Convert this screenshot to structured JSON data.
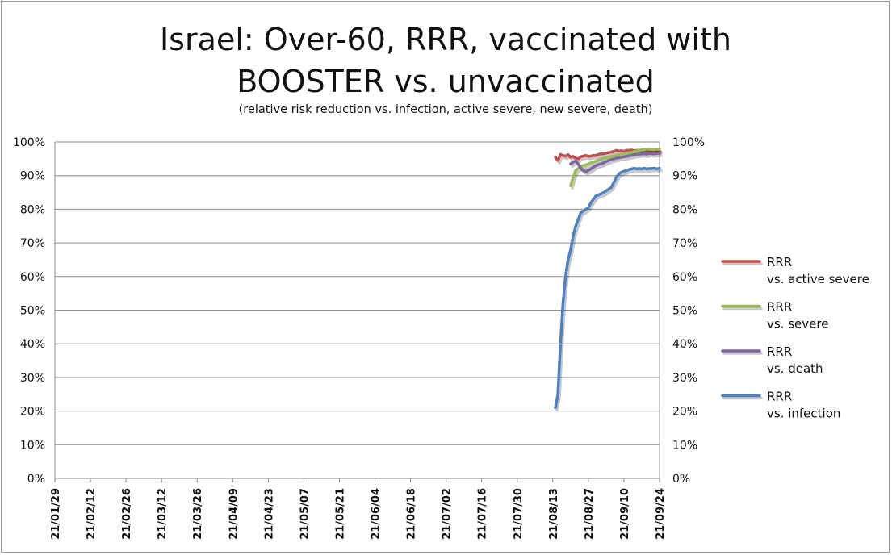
{
  "chart_data": {
    "type": "line",
    "title_lines": [
      "Israel: Over-60, RRR, vaccinated with",
      "BOOSTER vs. unvaccinated"
    ],
    "subtitle": "(relative risk reduction vs. infection, active severe, new severe, death)",
    "x_categories": [
      "21/01/29",
      "21/02/12",
      "21/02/26",
      "21/03/12",
      "21/03/26",
      "21/04/09",
      "21/04/23",
      "21/05/07",
      "21/05/21",
      "21/06/04",
      "21/06/18",
      "21/07/02",
      "21/07/16",
      "21/07/30",
      "21/08/13",
      "21/08/27",
      "21/09/10",
      "21/09/24"
    ],
    "y_ticks_left": [
      "100%",
      "90%",
      "80%",
      "70%",
      "60%",
      "50%",
      "40%",
      "30%",
      "20%",
      "10%",
      "0%"
    ],
    "y_ticks_right": [
      "100%",
      "90%",
      "80%",
      "70%",
      "60%",
      "50%",
      "40%",
      "30%",
      "20%",
      "10%",
      "0%"
    ],
    "ylim": [
      0,
      100
    ],
    "grid": true,
    "legend_position": "right",
    "series": [
      {
        "name_lines": [
          "RRR",
          "vs. active severe"
        ],
        "color": "#c0504d",
        "points": [
          [
            "21/08/14",
            95.5
          ],
          [
            "21/08/15",
            94.5
          ],
          [
            "21/08/16",
            96.3
          ],
          [
            "21/08/17",
            96
          ],
          [
            "21/08/18",
            95.8
          ],
          [
            "21/08/19",
            96.2
          ],
          [
            "21/08/20",
            95.5
          ],
          [
            "21/08/21",
            95.7
          ],
          [
            "21/08/22",
            95.2
          ],
          [
            "21/08/23",
            95
          ],
          [
            "21/08/24",
            95.6
          ],
          [
            "21/08/25",
            95.8
          ],
          [
            "21/08/26",
            96
          ],
          [
            "21/08/27",
            95.7
          ],
          [
            "21/08/28",
            95.8
          ],
          [
            "21/08/29",
            96
          ],
          [
            "21/08/30",
            96
          ],
          [
            "21/08/31",
            96.3
          ],
          [
            "21/09/01",
            96.5
          ],
          [
            "21/09/02",
            96.5
          ],
          [
            "21/09/03",
            96.7
          ],
          [
            "21/09/04",
            96.8
          ],
          [
            "21/09/05",
            97
          ],
          [
            "21/09/06",
            97.2
          ],
          [
            "21/09/07",
            97.5
          ],
          [
            "21/09/08",
            97.3
          ],
          [
            "21/09/09",
            97.4
          ],
          [
            "21/09/10",
            97.2
          ],
          [
            "21/09/11",
            97.5
          ],
          [
            "21/09/12",
            97.5
          ],
          [
            "21/09/13",
            97.6
          ],
          [
            "21/09/14",
            97.4
          ],
          [
            "21/09/15",
            97.5
          ],
          [
            "21/09/16",
            97.5
          ],
          [
            "21/09/17",
            97.6
          ],
          [
            "21/09/18",
            97.7
          ],
          [
            "21/09/19",
            97.5
          ],
          [
            "21/09/20",
            97.6
          ],
          [
            "21/09/21",
            97.4
          ],
          [
            "21/09/22",
            97.5
          ],
          [
            "21/09/23",
            97.3
          ],
          [
            "21/09/24",
            97.4
          ]
        ]
      },
      {
        "name_lines": [
          "RRR",
          "vs. severe"
        ],
        "color": "#9bbb59",
        "points": [
          [
            "21/08/20",
            87
          ],
          [
            "21/08/21",
            89.5
          ],
          [
            "21/08/22",
            91.5
          ],
          [
            "21/08/23",
            92.2
          ],
          [
            "21/08/24",
            92.8
          ],
          [
            "21/08/25",
            93
          ],
          [
            "21/08/26",
            93.2
          ],
          [
            "21/08/27",
            93.5
          ],
          [
            "21/08/28",
            93.8
          ],
          [
            "21/08/29",
            94
          ],
          [
            "21/08/30",
            94.3
          ],
          [
            "21/08/31",
            94.6
          ],
          [
            "21/09/01",
            94.9
          ],
          [
            "21/09/02",
            95.1
          ],
          [
            "21/09/03",
            95.3
          ],
          [
            "21/09/04",
            95.5
          ],
          [
            "21/09/05",
            95.7
          ],
          [
            "21/09/06",
            95.9
          ],
          [
            "21/09/07",
            96.1
          ],
          [
            "21/09/08",
            96.2
          ],
          [
            "21/09/09",
            96.4
          ],
          [
            "21/09/10",
            96.5
          ],
          [
            "21/09/11",
            96.6
          ],
          [
            "21/09/12",
            96.8
          ],
          [
            "21/09/13",
            96.9
          ],
          [
            "21/09/14",
            97.1
          ],
          [
            "21/09/15",
            97.3
          ],
          [
            "21/09/16",
            97.5
          ],
          [
            "21/09/17",
            97.7
          ],
          [
            "21/09/18",
            97.8
          ],
          [
            "21/09/19",
            97.9
          ],
          [
            "21/09/20",
            97.9
          ],
          [
            "21/09/21",
            97.8
          ],
          [
            "21/09/22",
            97.8
          ],
          [
            "21/09/23",
            97.9
          ],
          [
            "21/09/24",
            97.8
          ]
        ]
      },
      {
        "name_lines": [
          "RRR",
          "vs. death"
        ],
        "color": "#8064a2",
        "points": [
          [
            "21/08/20",
            93.5
          ],
          [
            "21/08/21",
            94
          ],
          [
            "21/08/22",
            94.3
          ],
          [
            "21/08/23",
            93.5
          ],
          [
            "21/08/24",
            92.2
          ],
          [
            "21/08/25",
            91.5
          ],
          [
            "21/08/26",
            91.3
          ],
          [
            "21/08/27",
            91.5
          ],
          [
            "21/08/28",
            92
          ],
          [
            "21/08/29",
            92.5
          ],
          [
            "21/08/30",
            93
          ],
          [
            "21/08/31",
            93.3
          ],
          [
            "21/09/01",
            93.5
          ],
          [
            "21/09/02",
            93.8
          ],
          [
            "21/09/03",
            94.2
          ],
          [
            "21/09/04",
            94.5
          ],
          [
            "21/09/05",
            94.8
          ],
          [
            "21/09/06",
            95
          ],
          [
            "21/09/07",
            95.2
          ],
          [
            "21/09/08",
            95.3
          ],
          [
            "21/09/09",
            95.5
          ],
          [
            "21/09/10",
            95.6
          ],
          [
            "21/09/11",
            95.7
          ],
          [
            "21/09/12",
            95.9
          ],
          [
            "21/09/13",
            96
          ],
          [
            "21/09/14",
            96.2
          ],
          [
            "21/09/15",
            96.3
          ],
          [
            "21/09/16",
            96.4
          ],
          [
            "21/09/17",
            96.5
          ],
          [
            "21/09/18",
            96.5
          ],
          [
            "21/09/19",
            96.4
          ],
          [
            "21/09/20",
            96.6
          ],
          [
            "21/09/21",
            96.5
          ],
          [
            "21/09/22",
            96.5
          ],
          [
            "21/09/23",
            96.6
          ],
          [
            "21/09/24",
            96.7
          ]
        ]
      },
      {
        "name_lines": [
          "RRR",
          "vs. infection"
        ],
        "color": "#4f81bd",
        "points": [
          [
            "21/08/14",
            21
          ],
          [
            "21/08/15",
            25
          ],
          [
            "21/08/16",
            40
          ],
          [
            "21/08/17",
            52
          ],
          [
            "21/08/18",
            60
          ],
          [
            "21/08/19",
            65
          ],
          [
            "21/08/20",
            68
          ],
          [
            "21/08/21",
            72
          ],
          [
            "21/08/22",
            75
          ],
          [
            "21/08/23",
            77
          ],
          [
            "21/08/24",
            79
          ],
          [
            "21/08/25",
            79.5
          ],
          [
            "21/08/26",
            80
          ],
          [
            "21/08/27",
            80.5
          ],
          [
            "21/08/28",
            82
          ],
          [
            "21/08/29",
            83
          ],
          [
            "21/08/30",
            84
          ],
          [
            "21/08/31",
            84.3
          ],
          [
            "21/09/01",
            84.6
          ],
          [
            "21/09/02",
            85
          ],
          [
            "21/09/03",
            85.5
          ],
          [
            "21/09/04",
            86
          ],
          [
            "21/09/05",
            86.5
          ],
          [
            "21/09/06",
            88
          ],
          [
            "21/09/07",
            89.5
          ],
          [
            "21/09/08",
            90.5
          ],
          [
            "21/09/09",
            91
          ],
          [
            "21/09/10",
            91.3
          ],
          [
            "21/09/11",
            91.5
          ],
          [
            "21/09/12",
            91.8
          ],
          [
            "21/09/13",
            92
          ],
          [
            "21/09/14",
            92.2
          ],
          [
            "21/09/15",
            92
          ],
          [
            "21/09/16",
            92.1
          ],
          [
            "21/09/17",
            92
          ],
          [
            "21/09/18",
            92.2
          ],
          [
            "21/09/19",
            92
          ],
          [
            "21/09/20",
            92.1
          ],
          [
            "21/09/21",
            92.1
          ],
          [
            "21/09/22",
            92.2
          ],
          [
            "21/09/23",
            92
          ],
          [
            "21/09/24",
            92.2
          ]
        ]
      }
    ]
  }
}
